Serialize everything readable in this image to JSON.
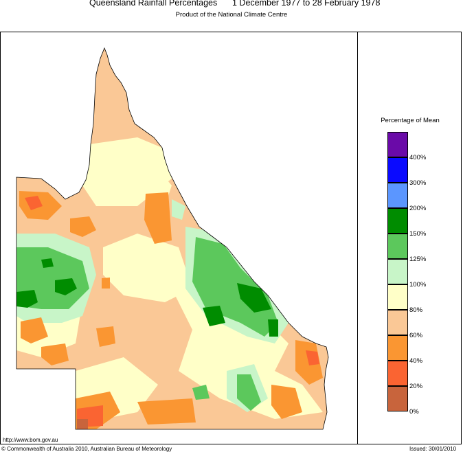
{
  "header": {
    "title_left": "Queensland Rainfall Percentages",
    "title_right": "1 December 1977 to 28 February 1978",
    "subtitle": "Product of the National Climate Centre"
  },
  "legend": {
    "title": "Percentage of Mean",
    "bins": [
      {
        "color": "#6a0aa8",
        "label": "400%"
      },
      {
        "color": "#0a0aff",
        "label": "300%"
      },
      {
        "color": "#5b96ff",
        "label": "200%"
      },
      {
        "color": "#008c00",
        "label": "150%"
      },
      {
        "color": "#5cc85c",
        "label": "125%"
      },
      {
        "color": "#c8f5c8",
        "label": "100%"
      },
      {
        "color": "#ffffc8",
        "label": "80%"
      },
      {
        "color": "#fac896",
        "label": "60%"
      },
      {
        "color": "#fa9632",
        "label": "40%"
      },
      {
        "color": "#fa6432",
        "label": "20%"
      },
      {
        "color": "#c8643c",
        "label": "0%"
      }
    ]
  },
  "footer": {
    "url": "http://www.bom.gov.au",
    "copyright": "© Commonwealth of Australia 2010, Australian Bureau of Meteorology",
    "issued": "Issued: 30/01/2010"
  }
}
